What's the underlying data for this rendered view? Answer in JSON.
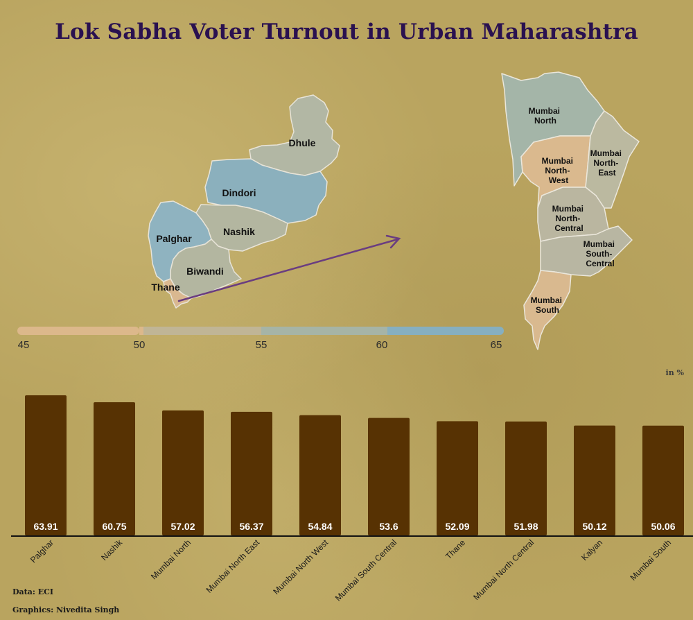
{
  "title": "Lok Sabha Voter Turnout in Urban Maharashtra",
  "unit_label": "in %",
  "source": "Data: ECI",
  "credit": "Graphics: Nivedita Singh",
  "colors": {
    "title": "#2a1150",
    "bar": "#573203",
    "scale": [
      "#dcb88b",
      "#c0b596",
      "#a6b4a6",
      "#86afc0"
    ],
    "arrow": "#6a3d80"
  },
  "legend": {
    "ticks": [
      "45",
      "50",
      "55",
      "60",
      "65"
    ]
  },
  "map_left": {
    "regions": [
      "Dhule",
      "Dindori",
      "Nashik",
      "Palghar",
      "Biwandi",
      "Thane"
    ]
  },
  "map_right": {
    "regions": [
      [
        "Mumbai",
        "North"
      ],
      [
        "Mumbai",
        "North-",
        "West"
      ],
      [
        "Mumbai",
        "North-",
        "East"
      ],
      [
        "Mumbai",
        "North-",
        "Central"
      ],
      [
        "Mumbai",
        "South-",
        "Central"
      ],
      [
        "Mumbai",
        "South"
      ]
    ]
  },
  "chart_data": {
    "type": "bar",
    "categories": [
      "Palghar",
      "Nashik",
      "Mumbai North",
      "Mumbai North East",
      "Mumbai North West",
      "Mumbai South Central",
      "Thane",
      "Mumbai North Central",
      "Kalyan",
      "Mumbai South"
    ],
    "values": [
      63.91,
      60.75,
      57.02,
      56.37,
      54.84,
      53.6,
      52.09,
      51.98,
      50.12,
      50.06
    ],
    "value_labels": [
      "63.91",
      "60.75",
      "57.02",
      "56.37",
      "54.84",
      "53.6",
      "52.09",
      "51.98",
      "50.12",
      "50.06"
    ],
    "title": "Lok Sabha Voter Turnout in Urban Maharashtra",
    "ylabel": "in %",
    "ylim": [
      0,
      63.91
    ]
  }
}
